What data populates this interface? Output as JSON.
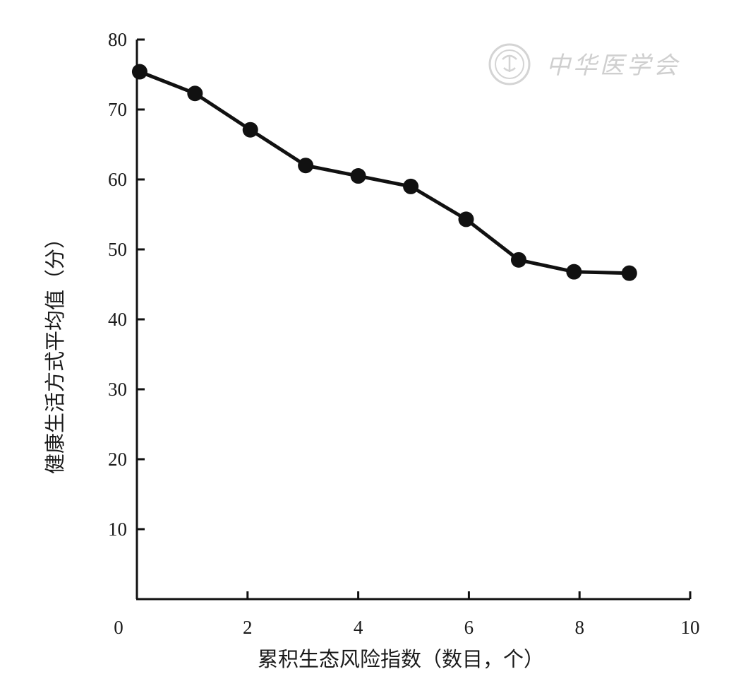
{
  "chart_data": {
    "type": "line",
    "x": [
      0.05,
      1.05,
      2.05,
      3.05,
      4.0,
      4.95,
      5.95,
      6.9,
      7.9,
      8.9
    ],
    "series": [
      {
        "values": [
          75.4,
          72.3,
          67.1,
          62.0,
          60.5,
          59.0,
          54.3,
          48.5,
          46.8,
          46.6
        ]
      }
    ],
    "xlabel": "累积生态风险指数（数目，个）",
    "ylabel": "健康生活方式平均值（分）",
    "xlim": [
      0,
      10
    ],
    "ylim": [
      0,
      80
    ],
    "xticks": [
      0,
      2,
      4,
      6,
      8,
      10
    ],
    "yticks": [
      10,
      20,
      30,
      40,
      50,
      60,
      70,
      80
    ],
    "grid": false,
    "legend": "none",
    "line_color": "#111111",
    "marker_color": "#111111"
  },
  "watermark": {
    "text": "中华医学会",
    "color": "#cfcfcf"
  }
}
